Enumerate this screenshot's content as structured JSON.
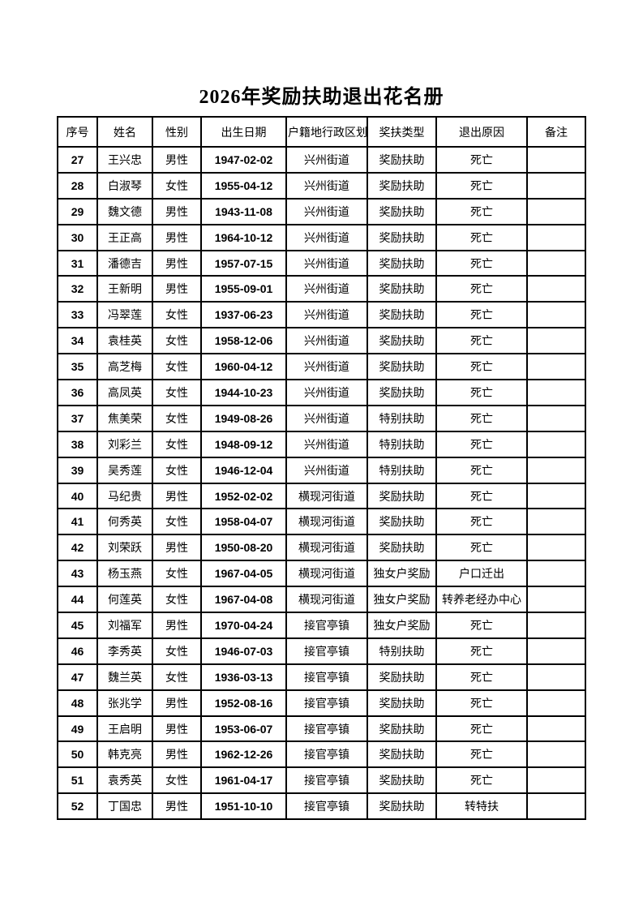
{
  "page": {
    "title": "2026年奖励扶助退出花名册"
  },
  "table": {
    "columns": [
      "序号",
      "姓名",
      "性别",
      "出生日期",
      "户籍地行政区划",
      "奖扶类型",
      "退出原因",
      "备注"
    ],
    "column_keys": [
      "serial",
      "name",
      "gender",
      "birth-date",
      "district",
      "aid-type",
      "exit-reason",
      "remark"
    ],
    "rows": [
      [
        "27",
        "王兴忠",
        "男性",
        "1947-02-02",
        "兴州街道",
        "奖励扶助",
        "死亡",
        ""
      ],
      [
        "28",
        "白淑琴",
        "女性",
        "1955-04-12",
        "兴州街道",
        "奖励扶助",
        "死亡",
        ""
      ],
      [
        "29",
        "魏文德",
        "男性",
        "1943-11-08",
        "兴州街道",
        "奖励扶助",
        "死亡",
        ""
      ],
      [
        "30",
        "王正高",
        "男性",
        "1964-10-12",
        "兴州街道",
        "奖励扶助",
        "死亡",
        ""
      ],
      [
        "31",
        "潘德吉",
        "男性",
        "1957-07-15",
        "兴州街道",
        "奖励扶助",
        "死亡",
        ""
      ],
      [
        "32",
        "王新明",
        "男性",
        "1955-09-01",
        "兴州街道",
        "奖励扶助",
        "死亡",
        ""
      ],
      [
        "33",
        "冯翠莲",
        "女性",
        "1937-06-23",
        "兴州街道",
        "奖励扶助",
        "死亡",
        ""
      ],
      [
        "34",
        "袁桂英",
        "女性",
        "1958-12-06",
        "兴州街道",
        "奖励扶助",
        "死亡",
        ""
      ],
      [
        "35",
        "高芝梅",
        "女性",
        "1960-04-12",
        "兴州街道",
        "奖励扶助",
        "死亡",
        ""
      ],
      [
        "36",
        "高凤英",
        "女性",
        "1944-10-23",
        "兴州街道",
        "奖励扶助",
        "死亡",
        ""
      ],
      [
        "37",
        "焦美荣",
        "女性",
        "1949-08-26",
        "兴州街道",
        "特别扶助",
        "死亡",
        ""
      ],
      [
        "38",
        "刘彩兰",
        "女性",
        "1948-09-12",
        "兴州街道",
        "特别扶助",
        "死亡",
        ""
      ],
      [
        "39",
        "吴秀莲",
        "女性",
        "1946-12-04",
        "兴州街道",
        "特别扶助",
        "死亡",
        ""
      ],
      [
        "40",
        "马纪贵",
        "男性",
        "1952-02-02",
        "横现河街道",
        "奖励扶助",
        "死亡",
        ""
      ],
      [
        "41",
        "何秀英",
        "女性",
        "1958-04-07",
        "横现河街道",
        "奖励扶助",
        "死亡",
        ""
      ],
      [
        "42",
        "刘荣跃",
        "男性",
        "1950-08-20",
        "横现河街道",
        "奖励扶助",
        "死亡",
        ""
      ],
      [
        "43",
        "杨玉燕",
        "女性",
        "1967-04-05",
        "横现河街道",
        "独女户奖励",
        "户口迁出",
        ""
      ],
      [
        "44",
        "何莲英",
        "女性",
        "1967-04-08",
        "横现河街道",
        "独女户奖励",
        "转养老经办中心",
        ""
      ],
      [
        "45",
        "刘福军",
        "男性",
        "1970-04-24",
        "接官亭镇",
        "独女户奖励",
        "死亡",
        ""
      ],
      [
        "46",
        "李秀英",
        "女性",
        "1946-07-03",
        "接官亭镇",
        "特别扶助",
        "死亡",
        ""
      ],
      [
        "47",
        "魏兰英",
        "女性",
        "1936-03-13",
        "接官亭镇",
        "奖励扶助",
        "死亡",
        ""
      ],
      [
        "48",
        "张兆学",
        "男性",
        "1952-08-16",
        "接官亭镇",
        "奖励扶助",
        "死亡",
        ""
      ],
      [
        "49",
        "王启明",
        "男性",
        "1953-06-07",
        "接官亭镇",
        "奖励扶助",
        "死亡",
        ""
      ],
      [
        "50",
        "韩克亮",
        "男性",
        "1962-12-26",
        "接官亭镇",
        "奖励扶助",
        "死亡",
        ""
      ],
      [
        "51",
        "袁秀英",
        "女性",
        "1961-04-17",
        "接官亭镇",
        "奖励扶助",
        "死亡",
        ""
      ],
      [
        "52",
        "丁国忠",
        "男性",
        "1951-10-10",
        "接官亭镇",
        "奖励扶助",
        "转特扶",
        ""
      ]
    ]
  },
  "colors": {
    "text": "#000000",
    "border": "#000000",
    "page_background": "#ffffff"
  }
}
